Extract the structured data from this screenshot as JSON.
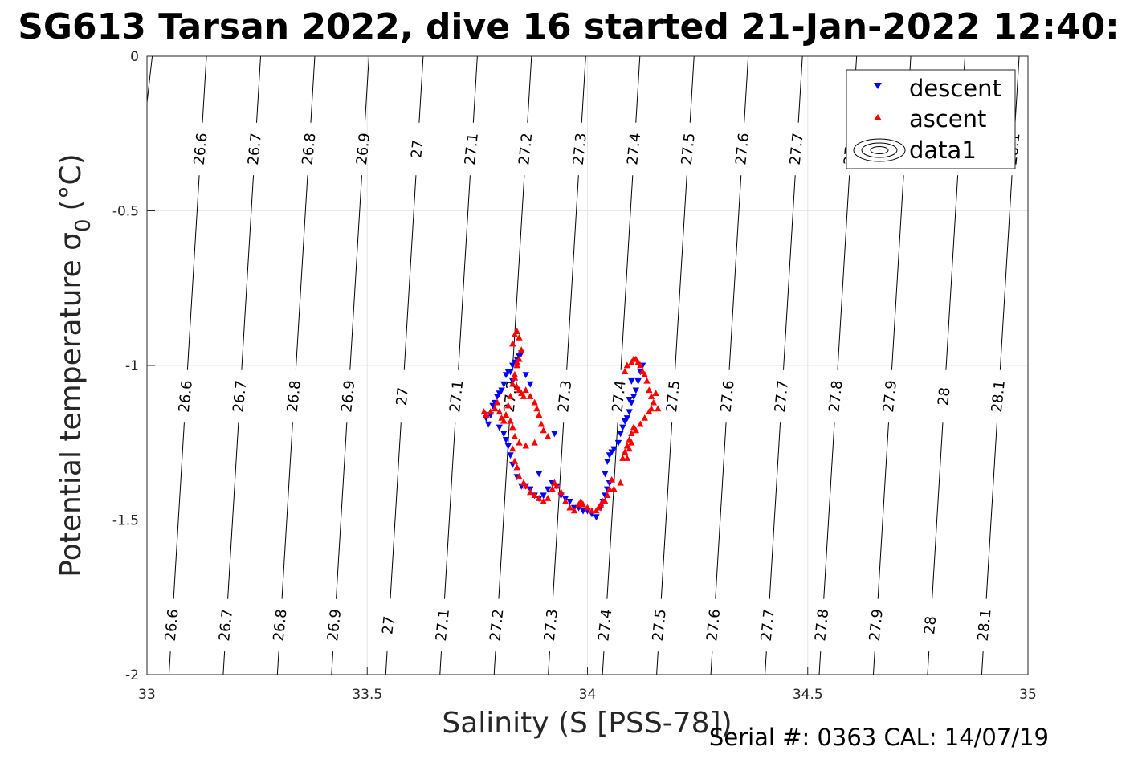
{
  "chart_data": {
    "type": "scatter",
    "title": "SG613 Tarsan 2022, dive 16 started 21-Jan-2022 12:40:",
    "xlabel": "Salinity (S [PSS-78])",
    "ylabel_main": "Potential temperature σ",
    "ylabel_sub": "0",
    "ylabel_unit": "(°C)",
    "footer": "Serial #: 0363  CAL: 14/07/19",
    "xlim": [
      33,
      35
    ],
    "ylim": [
      -2,
      0
    ],
    "grid": true,
    "x_ticks": [
      {
        "value": 33,
        "label": "33"
      },
      {
        "value": 33.5,
        "label": "33.5"
      },
      {
        "value": 34,
        "label": "34"
      },
      {
        "value": 34.5,
        "label": "34.5"
      },
      {
        "value": 35,
        "label": "35"
      }
    ],
    "y_ticks": [
      {
        "value": 0,
        "label": "0"
      },
      {
        "value": -0.5,
        "label": "-0.5"
      },
      {
        "value": -1,
        "label": "-1"
      },
      {
        "value": -1.5,
        "label": "-1.5"
      },
      {
        "value": -2,
        "label": "-2"
      }
    ],
    "legend": {
      "position": "top-right",
      "entries": [
        {
          "name": "descent",
          "marker": "triangle-down",
          "color": "#0000ff"
        },
        {
          "name": "ascent",
          "marker": "triangle-up",
          "color": "#ff0000"
        },
        {
          "name": "data1",
          "marker": "contour",
          "color": "#000000"
        }
      ]
    },
    "isopycnals": {
      "levels": [
        {
          "value": 26.6,
          "label": "26.6",
          "s_top": 33.135,
          "s_bottom": 33.05
        },
        {
          "value": 26.7,
          "label": "26.7",
          "s_top": 33.258,
          "s_bottom": 33.173
        },
        {
          "value": 26.8,
          "label": "26.8",
          "s_top": 33.381,
          "s_bottom": 33.296
        },
        {
          "value": 26.9,
          "label": "26.9",
          "s_top": 33.504,
          "s_bottom": 33.419
        },
        {
          "value": 27,
          "label": "27",
          "s_top": 33.627,
          "s_bottom": 33.542
        },
        {
          "value": 27.1,
          "label": "27.1",
          "s_top": 33.75,
          "s_bottom": 33.665
        },
        {
          "value": 27.2,
          "label": "27.2",
          "s_top": 33.873,
          "s_bottom": 33.788
        },
        {
          "value": 27.3,
          "label": "27.3",
          "s_top": 33.996,
          "s_bottom": 33.911
        },
        {
          "value": 27.4,
          "label": "27.4",
          "s_top": 34.119,
          "s_bottom": 34.034
        },
        {
          "value": 27.5,
          "label": "27.5",
          "s_top": 34.242,
          "s_bottom": 34.157
        },
        {
          "value": 27.6,
          "label": "27.6",
          "s_top": 34.365,
          "s_bottom": 34.28
        },
        {
          "value": 27.7,
          "label": "27.7",
          "s_top": 34.488,
          "s_bottom": 34.403
        },
        {
          "value": 27.8,
          "label": "27.8",
          "s_top": 34.611,
          "s_bottom": 34.526
        },
        {
          "value": 27.9,
          "label": "27.9",
          "s_top": 34.734,
          "s_bottom": 34.649
        },
        {
          "value": 28,
          "label": "28",
          "s_top": 34.857,
          "s_bottom": 34.772
        },
        {
          "value": 28.1,
          "label": "28.1",
          "s_top": 34.98,
          "s_bottom": 34.895
        }
      ],
      "label_rows_t": [
        -0.3,
        -1.1,
        -1.84
      ]
    },
    "series": [
      {
        "name": "descent",
        "marker": "triangle-down",
        "color": "#0000ff",
        "points": [
          [
            33.77,
            -1.17
          ],
          [
            33.775,
            -1.19
          ],
          [
            33.78,
            -1.16
          ],
          [
            33.785,
            -1.13
          ],
          [
            33.79,
            -1.12
          ],
          [
            33.795,
            -1.1
          ],
          [
            33.8,
            -1.09
          ],
          [
            33.805,
            -1.08
          ],
          [
            33.81,
            -1.06
          ],
          [
            33.815,
            -1.03
          ],
          [
            33.82,
            -1.02
          ],
          [
            33.825,
            -1.02
          ],
          [
            33.83,
            -1.0
          ],
          [
            33.835,
            -0.99
          ],
          [
            33.84,
            -0.98
          ],
          [
            33.845,
            -0.97
          ],
          [
            33.85,
            -0.96
          ],
          [
            33.8,
            -1.2
          ],
          [
            33.81,
            -1.22
          ],
          [
            33.815,
            -1.24
          ],
          [
            33.82,
            -1.26
          ],
          [
            33.825,
            -1.29
          ],
          [
            33.83,
            -1.32
          ],
          [
            33.84,
            -1.36
          ],
          [
            33.85,
            -1.39
          ],
          [
            33.86,
            -1.39
          ],
          [
            33.87,
            -1.4
          ],
          [
            33.88,
            -1.42
          ],
          [
            33.89,
            -1.43
          ],
          [
            33.9,
            -1.42
          ],
          [
            33.91,
            -1.4
          ],
          [
            33.92,
            -1.38
          ],
          [
            33.93,
            -1.39
          ],
          [
            33.94,
            -1.42
          ],
          [
            33.95,
            -1.43
          ],
          [
            33.96,
            -1.44
          ],
          [
            33.97,
            -1.46
          ],
          [
            33.98,
            -1.46
          ],
          [
            33.99,
            -1.47
          ],
          [
            34.0,
            -1.47
          ],
          [
            34.01,
            -1.48
          ],
          [
            34.02,
            -1.49
          ],
          [
            34.03,
            -1.46
          ],
          [
            34.035,
            -1.44
          ],
          [
            34.04,
            -1.42
          ],
          [
            34.045,
            -1.4
          ],
          [
            34.05,
            -1.38
          ],
          [
            34.04,
            -1.35
          ],
          [
            34.045,
            -1.31
          ],
          [
            34.05,
            -1.29
          ],
          [
            34.055,
            -1.28
          ],
          [
            34.06,
            -1.27
          ],
          [
            34.07,
            -1.25
          ],
          [
            34.075,
            -1.22
          ],
          [
            34.08,
            -1.2
          ],
          [
            34.085,
            -1.18
          ],
          [
            34.09,
            -1.17
          ],
          [
            34.095,
            -1.15
          ],
          [
            34.1,
            -1.12
          ],
          [
            34.105,
            -1.1
          ],
          [
            34.11,
            -1.08
          ],
          [
            34.115,
            -1.05
          ],
          [
            34.12,
            -1.02
          ],
          [
            34.125,
            -1.0
          ],
          [
            33.87,
            -1.06
          ],
          [
            33.86,
            -1.03
          ],
          [
            33.83,
            -1.05
          ],
          [
            33.925,
            -1.22
          ],
          [
            33.89,
            -1.35
          ],
          [
            34.1,
            -1.05
          ],
          [
            34.095,
            -1.11
          ]
        ]
      },
      {
        "name": "ascent",
        "marker": "triangle-up",
        "color": "#ff0000",
        "points": [
          [
            33.765,
            -1.15
          ],
          [
            33.77,
            -1.16
          ],
          [
            33.78,
            -1.15
          ],
          [
            33.79,
            -1.14
          ],
          [
            33.795,
            -1.12
          ],
          [
            33.8,
            -1.15
          ],
          [
            33.805,
            -1.17
          ],
          [
            33.81,
            -1.18
          ],
          [
            33.815,
            -1.16
          ],
          [
            33.82,
            -1.13
          ],
          [
            33.825,
            -1.1
          ],
          [
            33.83,
            -1.06
          ],
          [
            33.835,
            -1.03
          ],
          [
            33.84,
            -0.99
          ],
          [
            33.83,
            -0.93
          ],
          [
            33.835,
            -0.9
          ],
          [
            33.84,
            -0.89
          ],
          [
            33.845,
            -0.91
          ],
          [
            33.85,
            -0.95
          ],
          [
            33.845,
            -0.98
          ],
          [
            33.84,
            -1.0
          ],
          [
            33.835,
            -1.04
          ],
          [
            33.84,
            -1.07
          ],
          [
            33.845,
            -1.08
          ],
          [
            33.85,
            -1.09
          ],
          [
            33.855,
            -1.1
          ],
          [
            33.86,
            -1.08
          ],
          [
            33.87,
            -1.1
          ],
          [
            33.88,
            -1.12
          ],
          [
            33.885,
            -1.14
          ],
          [
            33.89,
            -1.16
          ],
          [
            33.895,
            -1.19
          ],
          [
            33.9,
            -1.21
          ],
          [
            33.91,
            -1.23
          ],
          [
            33.88,
            -1.25
          ],
          [
            33.86,
            -1.26
          ],
          [
            33.845,
            -1.25
          ],
          [
            33.835,
            -1.23
          ],
          [
            33.83,
            -1.2
          ],
          [
            33.825,
            -1.18
          ],
          [
            33.83,
            -1.27
          ],
          [
            33.835,
            -1.31
          ],
          [
            33.84,
            -1.33
          ],
          [
            33.845,
            -1.36
          ],
          [
            33.855,
            -1.38
          ],
          [
            33.86,
            -1.39
          ],
          [
            33.87,
            -1.41
          ],
          [
            33.88,
            -1.42
          ],
          [
            33.89,
            -1.43
          ],
          [
            33.9,
            -1.44
          ],
          [
            33.91,
            -1.43
          ],
          [
            33.92,
            -1.4
          ],
          [
            33.925,
            -1.38
          ],
          [
            33.93,
            -1.39
          ],
          [
            33.94,
            -1.41
          ],
          [
            33.95,
            -1.44
          ],
          [
            33.96,
            -1.46
          ],
          [
            33.97,
            -1.47
          ],
          [
            33.98,
            -1.45
          ],
          [
            33.985,
            -1.44
          ],
          [
            33.99,
            -1.45
          ],
          [
            34.0,
            -1.46
          ],
          [
            34.01,
            -1.47
          ],
          [
            34.02,
            -1.47
          ],
          [
            34.025,
            -1.46
          ],
          [
            34.03,
            -1.45
          ],
          [
            34.035,
            -1.44
          ],
          [
            34.04,
            -1.44
          ],
          [
            34.045,
            -1.42
          ],
          [
            34.05,
            -1.4
          ],
          [
            34.055,
            -1.37
          ],
          [
            34.06,
            -1.4
          ],
          [
            34.075,
            -1.38
          ],
          [
            34.08,
            -1.3
          ],
          [
            34.085,
            -1.28
          ],
          [
            34.09,
            -1.26
          ],
          [
            34.095,
            -1.24
          ],
          [
            34.1,
            -1.22
          ],
          [
            34.105,
            -1.2
          ],
          [
            34.11,
            -1.21
          ],
          [
            34.12,
            -1.19
          ],
          [
            34.13,
            -1.17
          ],
          [
            34.14,
            -1.15
          ],
          [
            34.145,
            -1.14
          ],
          [
            34.15,
            -1.12
          ],
          [
            34.145,
            -1.1
          ],
          [
            34.14,
            -1.08
          ],
          [
            34.135,
            -1.05
          ],
          [
            34.13,
            -1.03
          ],
          [
            34.125,
            -1.02
          ],
          [
            34.12,
            -1.0
          ],
          [
            34.115,
            -0.99
          ],
          [
            34.11,
            -0.98
          ],
          [
            34.105,
            -0.98
          ],
          [
            34.1,
            -0.99
          ],
          [
            34.09,
            -1.0
          ],
          [
            34.085,
            -1.02
          ],
          [
            34.1,
            -1.25
          ],
          [
            34.095,
            -1.27
          ],
          [
            34.09,
            -1.3
          ],
          [
            34.16,
            -1.14
          ],
          [
            34.155,
            -1.09
          ]
        ]
      }
    ]
  }
}
